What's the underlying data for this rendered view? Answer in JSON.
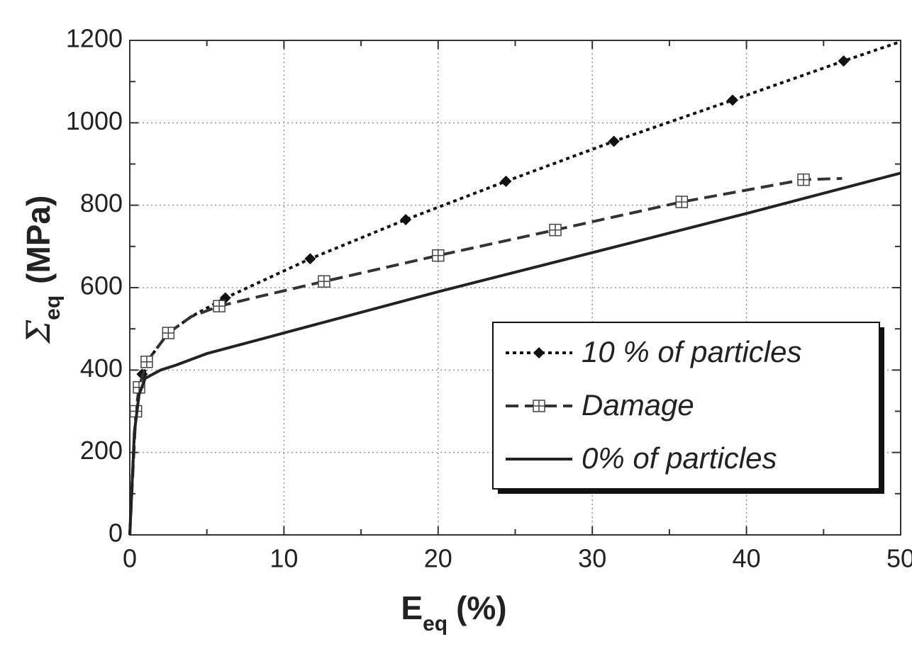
{
  "chart_data": {
    "type": "line",
    "x_label": {
      "main": "E",
      "sub": "eq",
      "rest": "(%)"
    },
    "y_label": {
      "main": "Σ",
      "sub": "eq",
      "rest": "(MPa)"
    },
    "xlim": [
      0,
      50
    ],
    "ylim": [
      0,
      1200
    ],
    "xticks": [
      0,
      10,
      20,
      30,
      40,
      50
    ],
    "yticks": [
      0,
      200,
      400,
      600,
      800,
      1000,
      1200
    ],
    "xminorticks": [
      5,
      15,
      25,
      35,
      45
    ],
    "yminorticks": [
      100,
      300,
      500,
      700,
      900,
      1100
    ],
    "grid": true,
    "legend": "lower right",
    "series": [
      {
        "name": "10 % of particles",
        "color": "#111111",
        "style": "dotted",
        "marker": "diamond",
        "x": [
          0,
          0.3,
          0.6,
          1,
          1.5,
          2.5,
          4,
          6.2,
          11.7,
          17.9,
          24.4,
          31.4,
          39.1,
          46.3,
          50
        ],
        "values": [
          0,
          250,
          340,
          400,
          440,
          490,
          530,
          575,
          670,
          765,
          858,
          955,
          1055,
          1150,
          1197
        ],
        "markers": {
          "x": [
            0.8,
            6.2,
            11.7,
            17.9,
            24.4,
            31.4,
            39.1,
            46.3
          ],
          "values": [
            390,
            575,
            670,
            765,
            858,
            955,
            1055,
            1150
          ]
        }
      },
      {
        "name": "Damage",
        "color": "#333333",
        "style": "dashed",
        "marker": "square-plus",
        "x": [
          0,
          0.4,
          0.6,
          1.1,
          2.5,
          4,
          5.8,
          8,
          12.6,
          20,
          27.6,
          35.8,
          43.7,
          46.2
        ],
        "values": [
          0,
          300,
          358,
          420,
          490,
          530,
          555,
          575,
          615,
          678,
          740,
          808,
          862,
          865
        ],
        "markers": {
          "x": [
            0.4,
            0.6,
            1.1,
            2.5,
            5.8,
            12.6,
            20,
            27.6,
            35.8,
            43.7
          ],
          "values": [
            300,
            358,
            420,
            490,
            555,
            615,
            678,
            740,
            808,
            862
          ]
        }
      },
      {
        "name": "0% of particles",
        "color": "#222222",
        "style": "solid",
        "marker": "none",
        "x": [
          0,
          0.3,
          0.6,
          1,
          2,
          3,
          5,
          10,
          20,
          30,
          40,
          50
        ],
        "values": [
          0,
          250,
          340,
          380,
          400,
          412,
          440,
          490,
          590,
          685,
          780,
          878
        ]
      }
    ]
  }
}
